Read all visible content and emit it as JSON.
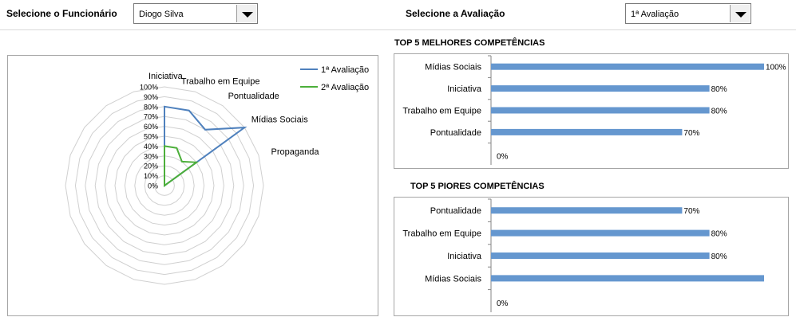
{
  "header": {
    "employee_label": "Selecione o Funcionário",
    "employee_value": "Diogo Silva",
    "evaluation_label": "Selecione a Avaliação",
    "evaluation_value": "1ª Avaliação"
  },
  "radar": {
    "chart_data": {
      "type": "radar",
      "axes": [
        "Iniciativa",
        "Trabalho em Equipe",
        "Pontualidade",
        "Mídias Sociais",
        "Propaganda"
      ],
      "radial_ticks": [
        "0%",
        "10%",
        "20%",
        "30%",
        "40%",
        "50%",
        "60%",
        "70%",
        "80%",
        "90%",
        "100%"
      ],
      "series": [
        {
          "name": "1ª Avaliação",
          "color": "#4f81bd",
          "values": [
            80,
            80,
            70,
            100,
            0
          ]
        },
        {
          "name": "2ª Avaliação",
          "color": "#4caf3a",
          "values": [
            40,
            40,
            30,
            40,
            0
          ]
        }
      ],
      "legend_position": "top-right"
    }
  },
  "top5_best": {
    "title": "TOP 5 MELHORES COMPETÊNCIAS",
    "chart_data": {
      "type": "bar",
      "orientation": "horizontal",
      "categories": [
        "Mídias Sociais",
        "Iniciativa",
        "Trabalho em Equipe",
        "Pontualidade",
        ""
      ],
      "values": [
        100,
        80,
        80,
        70,
        0
      ],
      "labels": [
        "100%",
        "80%",
        "80%",
        "70%",
        "0%"
      ],
      "color": "#6597cf",
      "xlim": [
        0,
        100
      ]
    }
  },
  "top5_worst": {
    "title": "TOP 5 PIORES COMPETÊNCIAS",
    "chart_data": {
      "type": "bar",
      "orientation": "horizontal",
      "categories": [
        "Pontualidade",
        "Trabalho em Equipe",
        "Iniciativa",
        "Mídias Sociais",
        ""
      ],
      "values": [
        70,
        80,
        80,
        100,
        0
      ],
      "labels": [
        "70%",
        "80%",
        "80%",
        "",
        "0%"
      ],
      "color": "#6597cf",
      "xlim": [
        0,
        100
      ]
    }
  }
}
